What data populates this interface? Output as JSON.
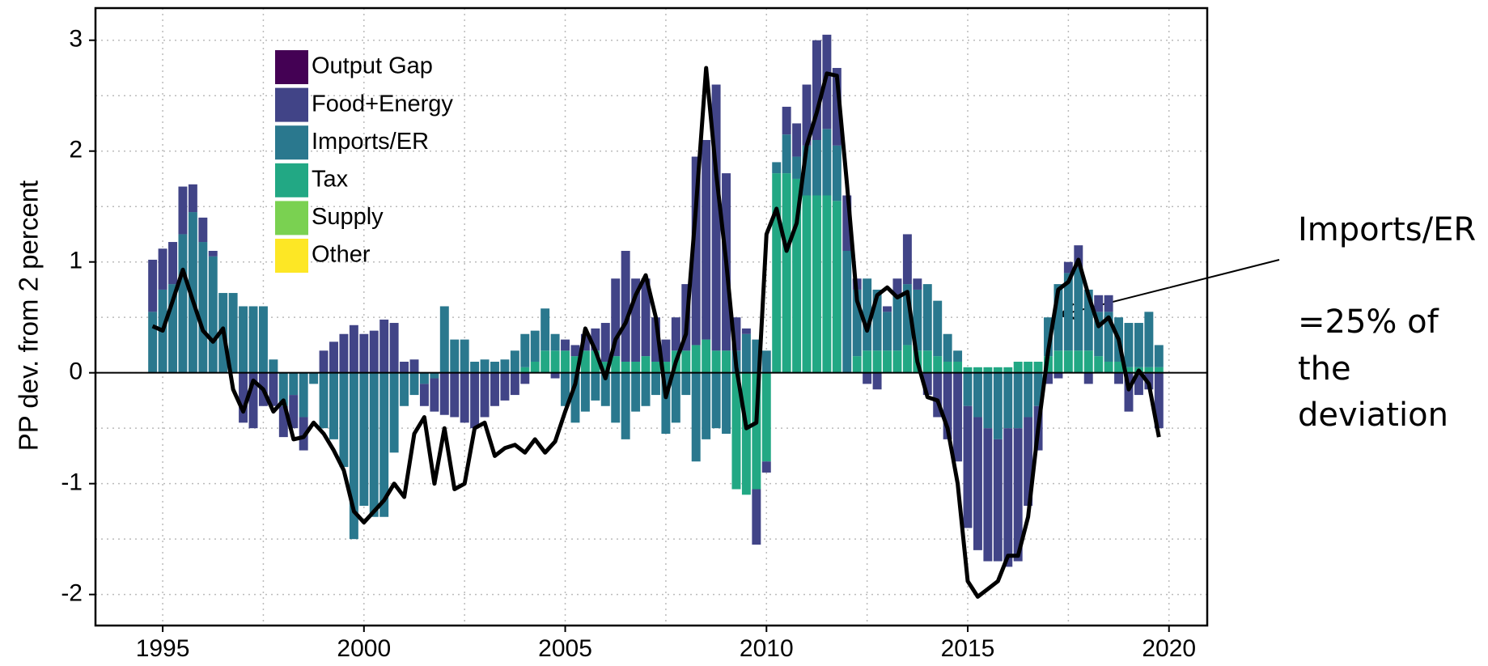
{
  "chart_data": {
    "type": "bar",
    "stacked": true,
    "ylabel": "PP dev. from 2 percent",
    "x": [
      1994.75,
      1995,
      1995.25,
      1995.5,
      1995.75,
      1996,
      1996.25,
      1996.5,
      1996.75,
      1997,
      1997.25,
      1997.5,
      1997.75,
      1998,
      1998.25,
      1998.5,
      1998.75,
      1999,
      1999.25,
      1999.5,
      1999.75,
      2000,
      2000.25,
      2000.5,
      2000.75,
      2001,
      2001.25,
      2001.5,
      2001.75,
      2002,
      2002.25,
      2002.5,
      2002.75,
      2003,
      2003.25,
      2003.5,
      2003.75,
      2004,
      2004.25,
      2004.5,
      2004.75,
      2005,
      2005.25,
      2005.5,
      2005.75,
      2006,
      2006.25,
      2006.5,
      2006.75,
      2007,
      2007.25,
      2007.5,
      2007.75,
      2008,
      2008.25,
      2008.5,
      2008.75,
      2009,
      2009.25,
      2009.5,
      2009.75,
      2010,
      2010.25,
      2010.5,
      2010.75,
      2011,
      2011.25,
      2011.5,
      2011.75,
      2012,
      2012.25,
      2012.5,
      2012.75,
      2013,
      2013.25,
      2013.5,
      2013.75,
      2014,
      2014.25,
      2014.5,
      2014.75,
      2015,
      2015.25,
      2015.5,
      2015.75,
      2016,
      2016.25,
      2016.5,
      2016.75,
      2017,
      2017.25,
      2017.5,
      2017.75,
      2018,
      2018.25,
      2018.5,
      2018.75,
      2019,
      2019.25,
      2019.5,
      2019.75
    ],
    "series": [
      {
        "name": "Output Gap",
        "color": "#440154",
        "values": [
          0,
          0,
          0,
          0,
          0,
          0,
          0,
          0,
          0,
          0,
          0,
          0,
          0,
          0,
          0,
          0,
          0,
          0,
          0,
          0,
          0,
          0,
          0,
          0,
          0,
          0,
          0,
          0,
          0,
          0,
          0,
          0,
          0,
          0,
          0,
          0,
          0,
          0,
          0,
          0,
          0,
          0,
          0,
          0,
          0,
          0,
          0,
          0,
          0,
          0,
          0,
          0,
          0,
          0,
          0,
          0,
          0,
          0,
          0,
          0,
          0,
          0,
          0,
          0,
          0,
          0,
          0,
          0,
          0,
          0,
          0,
          0,
          0,
          0,
          0,
          0,
          0,
          0,
          0,
          0,
          0,
          0,
          0,
          0,
          0,
          0,
          0,
          0,
          0,
          0,
          0,
          0,
          0,
          0,
          0,
          0,
          0,
          0,
          0,
          0,
          0
        ]
      },
      {
        "name": "Food+Energy",
        "color": "#414487",
        "values": [
          0.47,
          0.37,
          0.38,
          0.43,
          0.25,
          0.22,
          0.05,
          0,
          0,
          -0.45,
          -0.5,
          -0.3,
          -0.3,
          -0.28,
          -0.3,
          -0.3,
          0,
          0.2,
          0.28,
          0.35,
          0.43,
          0.35,
          0.38,
          0.48,
          0.45,
          0.1,
          0.12,
          -0.2,
          -0.3,
          -0.38,
          -0.4,
          -0.45,
          -0.5,
          -0.4,
          -0.3,
          -0.25,
          -0.2,
          -0.1,
          0,
          0,
          -0.05,
          0.1,
          0.1,
          0.15,
          0.2,
          0.35,
          0.7,
          1.0,
          0.75,
          0.7,
          0.4,
          0.2,
          0.3,
          0.6,
          1.7,
          1.8,
          2.4,
          1.6,
          0.3,
          0.05,
          -0.5,
          -0.1,
          0,
          0.25,
          0.3,
          0.55,
          0.9,
          0.85,
          0.7,
          0.5,
          0.1,
          -0.1,
          -0.15,
          0.05,
          0.15,
          0.45,
          0.1,
          -0.2,
          -0.4,
          -0.6,
          -0.8,
          -1.1,
          -1.2,
          -1.2,
          -1.1,
          -1.25,
          -1.2,
          -0.8,
          -0.4,
          -0.1,
          -0.05,
          0.1,
          0.2,
          -0.1,
          0.15,
          0.15,
          -0.1,
          -0.35,
          -0.2,
          -0.15,
          -0.5
        ]
      },
      {
        "name": "Imports/ER",
        "color": "#2a788e",
        "values": [
          0.55,
          0.75,
          0.8,
          1.25,
          1.45,
          1.18,
          1.05,
          0.72,
          0.72,
          0.6,
          0.6,
          0.6,
          0.12,
          -0.3,
          -0.2,
          -0.4,
          -0.1,
          -0.5,
          -0.6,
          -0.85,
          -1.5,
          -1.2,
          -1.3,
          -1.3,
          -0.72,
          -0.3,
          -0.2,
          -0.1,
          -0.05,
          0.6,
          0.3,
          0.3,
          0.1,
          0.12,
          0.1,
          0.12,
          0.2,
          0.3,
          0.28,
          0.38,
          0.15,
          -0.3,
          -0.45,
          -0.35,
          -0.25,
          -0.3,
          -0.45,
          -0.6,
          -0.35,
          -0.3,
          -0.2,
          -0.55,
          -0.45,
          -0.2,
          -0.8,
          -0.6,
          -0.5,
          -0.55,
          0.2,
          0.35,
          0.3,
          0.2,
          0.1,
          0.35,
          0.2,
          0.45,
          0.5,
          0.6,
          0.5,
          1.1,
          0.6,
          0.65,
          0.55,
          0.35,
          0.5,
          0.55,
          0.55,
          0.6,
          0.5,
          0.25,
          0.1,
          -0.3,
          -0.4,
          -0.5,
          -0.6,
          -0.5,
          -0.5,
          -0.4,
          -0.3,
          0.35,
          0.6,
          0.7,
          0.75,
          0.55,
          0.4,
          0.45,
          0.4,
          0.4,
          0.4,
          0.5,
          0.2
        ]
      },
      {
        "name": "Tax",
        "color": "#22a884",
        "values": [
          0,
          0,
          0,
          0,
          0,
          0,
          0,
          0,
          0,
          0,
          0,
          0,
          0,
          0,
          0,
          0,
          0,
          0,
          0,
          0,
          0,
          0,
          0,
          0,
          0,
          0,
          0,
          0,
          0,
          0,
          0,
          0,
          0,
          0,
          0,
          0,
          0,
          0.05,
          0.1,
          0.2,
          0.2,
          0.2,
          0.15,
          0.2,
          0.2,
          0.1,
          0.15,
          0.1,
          0.1,
          0.15,
          0.1,
          0.1,
          0.2,
          0.2,
          0.25,
          0.3,
          0.2,
          0.2,
          -1.05,
          -1.1,
          -1.05,
          -0.8,
          1.8,
          1.8,
          1.75,
          1.6,
          1.6,
          1.6,
          1.55,
          0,
          0.15,
          0.2,
          0.2,
          0.2,
          0.2,
          0.25,
          0.2,
          0.2,
          0.15,
          0.1,
          0.1,
          0.05,
          0.05,
          0.05,
          0.05,
          0.05,
          0.1,
          0.1,
          0.1,
          0.15,
          0.2,
          0.2,
          0.2,
          0.2,
          0.15,
          0.1,
          0.1,
          0.05,
          0.05,
          0.05,
          0.05
        ]
      },
      {
        "name": "Supply",
        "color": "#7ad151",
        "values": [
          0,
          0,
          0,
          0,
          0,
          0,
          0,
          0,
          0,
          0,
          0,
          0,
          0,
          0,
          0,
          0,
          0,
          0,
          0,
          0,
          0,
          0,
          0,
          0,
          0,
          0,
          0,
          0,
          0,
          0,
          0,
          0,
          0,
          0,
          0,
          0,
          0,
          0,
          0,
          0,
          0,
          0,
          0,
          0,
          0,
          0,
          0,
          0,
          0,
          0,
          0,
          0,
          0,
          0,
          0,
          0,
          0,
          0,
          0,
          0,
          0,
          0,
          0,
          0,
          0,
          0,
          0,
          0,
          0,
          0,
          0,
          0,
          0,
          0,
          0,
          0,
          0,
          0,
          0,
          0,
          0,
          0,
          0,
          0,
          0,
          0,
          0,
          0,
          0,
          0,
          0,
          0,
          0,
          0,
          0,
          0,
          0,
          0,
          0,
          0,
          0
        ]
      },
      {
        "name": "Other",
        "color": "#fde725",
        "values": [
          0,
          0,
          0,
          0,
          0,
          0,
          0,
          0,
          0,
          0,
          0,
          0,
          0,
          0,
          0,
          0,
          0,
          0,
          0,
          0,
          0,
          0,
          0,
          0,
          0,
          0,
          0,
          0,
          0,
          0,
          0,
          0,
          0,
          0,
          0,
          0,
          0,
          0,
          0,
          0,
          0,
          0,
          0,
          0,
          0,
          0,
          0,
          0,
          0,
          0,
          0,
          0,
          0,
          0,
          0,
          0,
          0,
          0,
          0,
          0,
          0,
          0,
          0,
          0,
          0,
          0,
          0,
          0,
          0,
          0,
          0,
          0,
          0,
          0,
          0,
          0,
          0,
          0,
          0,
          0,
          0,
          0,
          0,
          0,
          0,
          0,
          0,
          0,
          0,
          0,
          0,
          0,
          0,
          0,
          0,
          0,
          0,
          0,
          0,
          0,
          0
        ]
      },
      {
        "type": "line",
        "color": "#000000",
        "values": [
          0.42,
          0.38,
          0.65,
          0.93,
          0.65,
          0.38,
          0.28,
          0.4,
          -0.15,
          -0.35,
          -0.07,
          -0.15,
          -0.35,
          -0.25,
          -0.6,
          -0.58,
          -0.45,
          -0.55,
          -0.7,
          -0.88,
          -1.25,
          -1.35,
          -1.25,
          -1.15,
          -1.0,
          -1.12,
          -0.55,
          -0.4,
          -1.0,
          -0.5,
          -1.05,
          -1.0,
          -0.5,
          -0.45,
          -0.75,
          -0.68,
          -0.65,
          -0.72,
          -0.6,
          -0.72,
          -0.62,
          -0.35,
          -0.1,
          0.4,
          0.2,
          -0.05,
          0.3,
          0.45,
          0.7,
          0.88,
          0.5,
          -0.22,
          0.1,
          0.35,
          1.5,
          2.75,
          1.8,
          1.0,
          0.05,
          -0.5,
          -0.45,
          1.25,
          1.48,
          1.1,
          1.35,
          2.05,
          2.35,
          2.7,
          2.68,
          1.7,
          0.65,
          0.38,
          0.7,
          0.77,
          0.68,
          0.73,
          0.1,
          -0.22,
          -0.25,
          -0.5,
          -1.0,
          -1.88,
          -2.02,
          -1.95,
          -1.88,
          -1.65,
          -1.65,
          -1.3,
          -0.5,
          0.2,
          0.75,
          0.82,
          1.02,
          0.7,
          0.42,
          0.5,
          0.3,
          -0.15,
          0.02,
          -0.1,
          -0.58
        ]
      }
    ],
    "xlim": [
      1993.33,
      2020.95
    ],
    "xticks": [
      1995,
      2000,
      2005,
      2010,
      2015,
      2020
    ],
    "x_minor_ticks": [
      1997.5,
      2002.5,
      2007.5,
      2012.5,
      2017.5
    ],
    "ylim": [
      -2.28,
      3.29
    ],
    "yticks": [
      -2,
      -1,
      0,
      1,
      2,
      3
    ],
    "y_minor_ticks": [
      -1.5,
      -0.5,
      0.5,
      1.5,
      2.5
    ],
    "grid": true,
    "legend": "upper left",
    "annotation": [
      "Imports/ER",
      "=25% of",
      "the",
      "deviation"
    ]
  }
}
